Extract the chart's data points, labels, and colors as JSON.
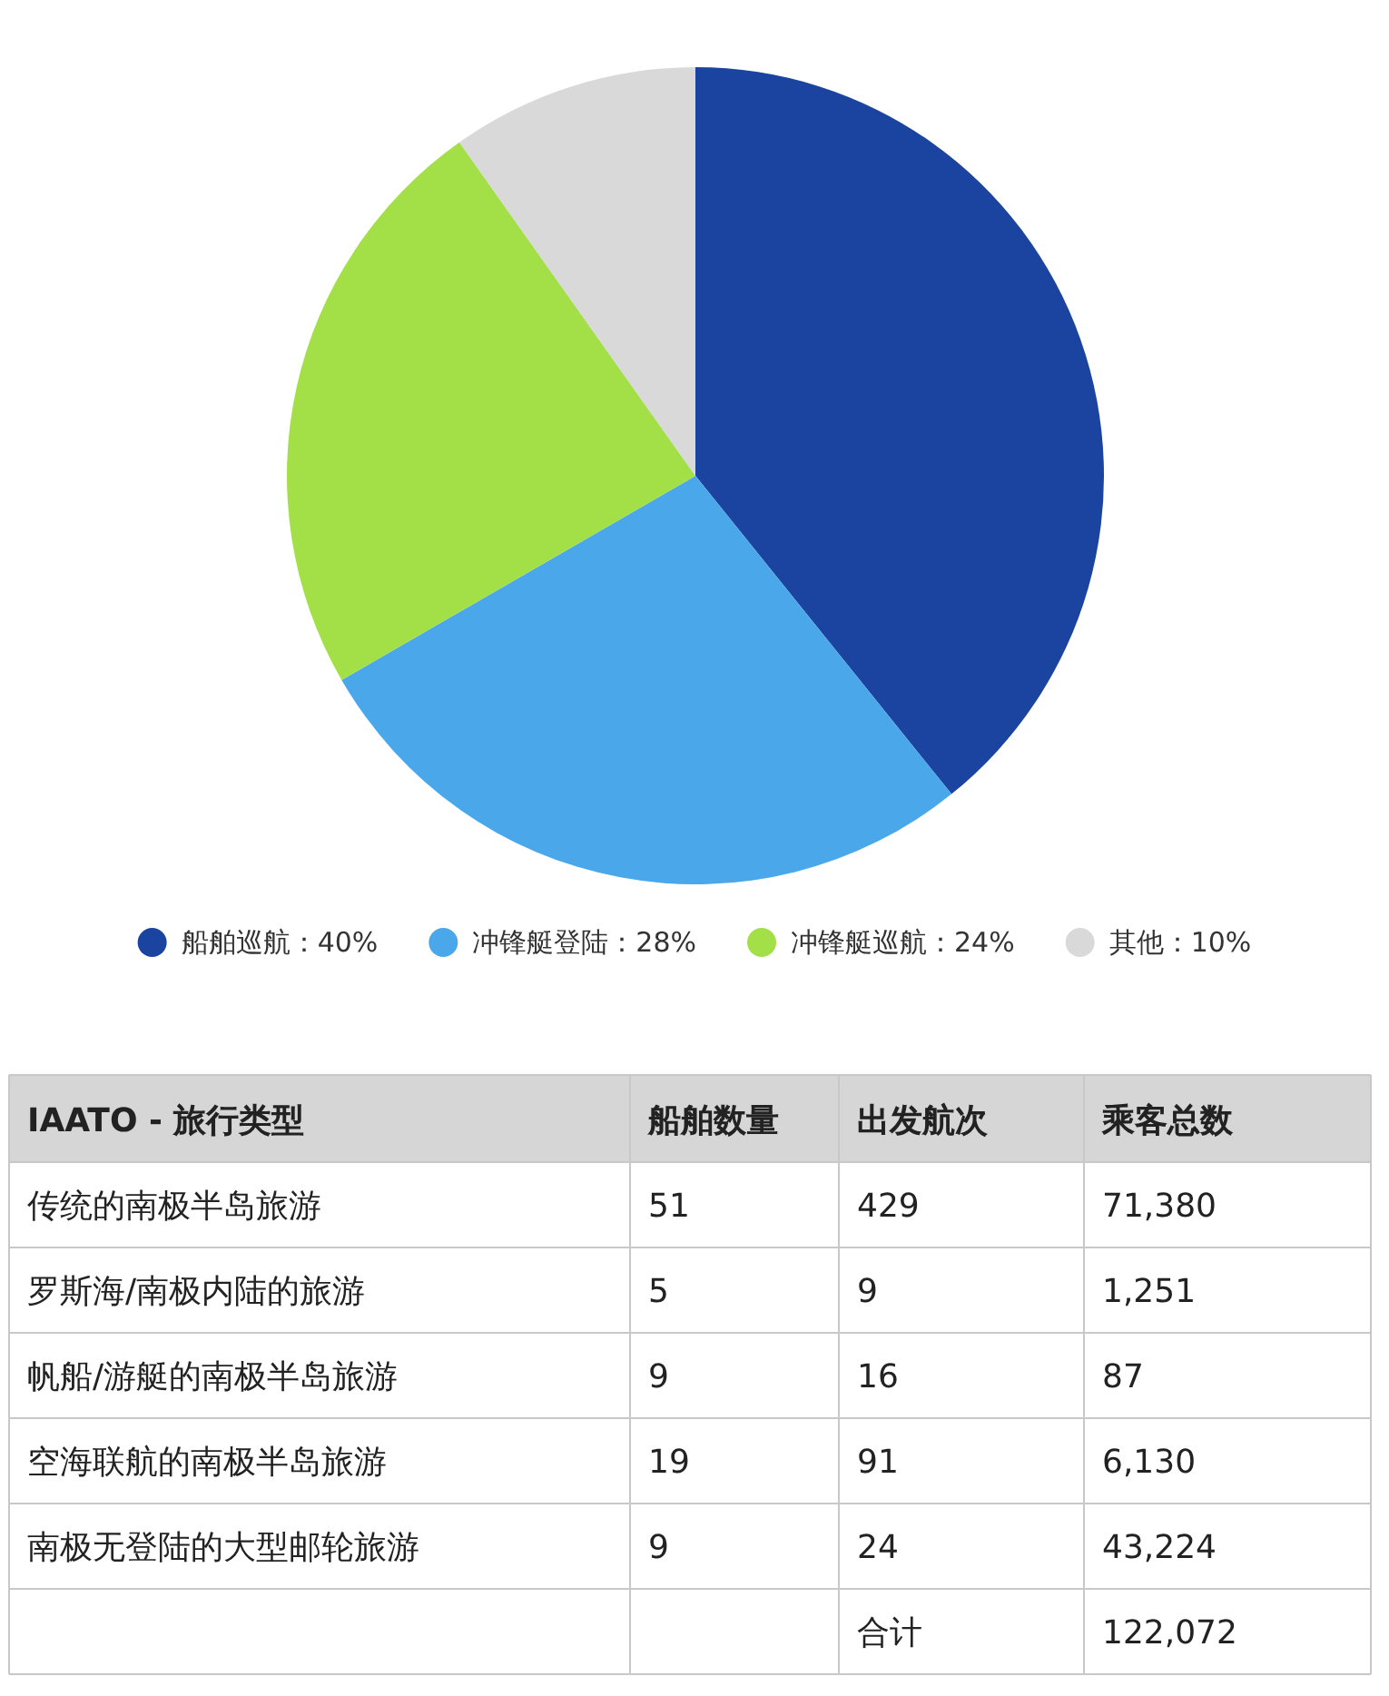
{
  "chart_data": [
    {
      "type": "pie",
      "categories": [
        "船舶巡航：40%",
        "冲锋艇登陆：28%",
        "冲锋艇巡航：24%",
        "其他：10%"
      ],
      "values": [
        40,
        28,
        24,
        10
      ],
      "colors": [
        "#1a44a0",
        "#4aa8ea",
        "#a3e048",
        "#d9d9d9"
      ],
      "legend": "bottom"
    },
    {
      "type": "other",
      "categories": [
        "IAATO - 旅行类型",
        "船舶数量",
        "出发航次",
        "乘客总数"
      ],
      "y_categories": [
        "传统的南极半岛旅游",
        "罗斯海/南极内陆的旅游",
        "帆船/游艇的南极半岛旅游",
        "空海联航的南极半岛旅游",
        "南极无登陆的大型邮轮旅游",
        null
      ],
      "cell_labels": [
        [
          "51",
          "429",
          "71,380"
        ],
        [
          "5",
          "9",
          "1,251"
        ],
        [
          "9",
          "16",
          "87"
        ],
        [
          "19",
          "91",
          "6,130"
        ],
        [
          "9",
          "24",
          "43,224"
        ],
        [
          null,
          "合计",
          "122,072"
        ]
      ]
    }
  ]
}
